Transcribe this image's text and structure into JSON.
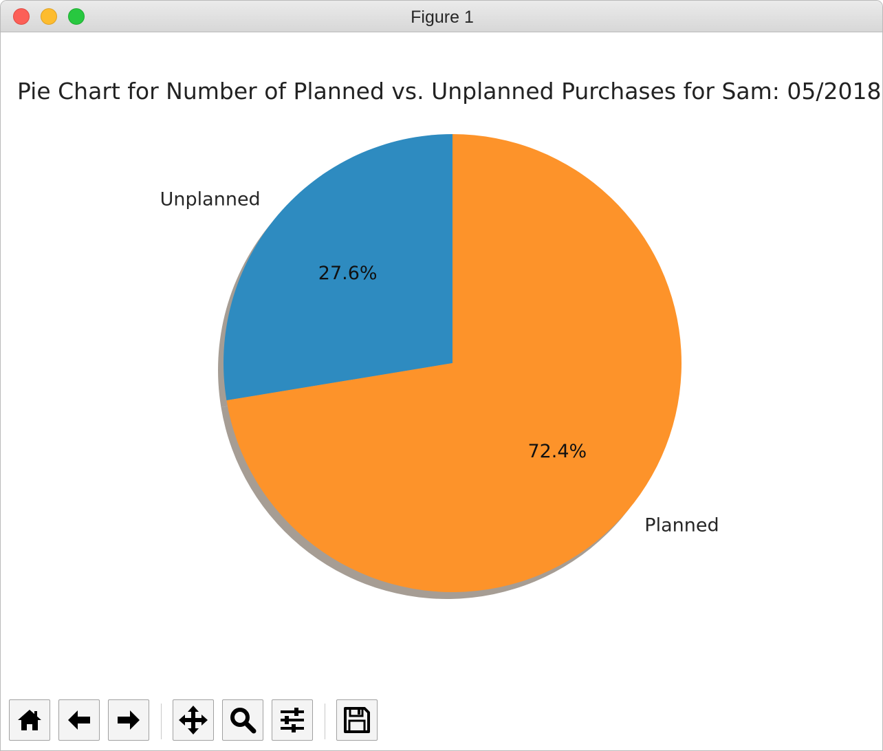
{
  "window": {
    "title": "Figure 1"
  },
  "chart_data": {
    "type": "pie",
    "title": "Pie Chart for Number of Planned vs. Unplanned Purchases for Sam: 05/2018",
    "slices": [
      {
        "label": "Unplanned",
        "percent": 27.6,
        "pct_label": "27.6%",
        "color": "#2e8bc0"
      },
      {
        "label": "Planned",
        "percent": 72.4,
        "pct_label": "72.4%",
        "color": "#fd932a"
      }
    ],
    "start_angle_deg": 90,
    "direction": "counterclockwise",
    "shadow": true,
    "shadow_color": "#a69d94",
    "legend": false
  },
  "toolbar": {
    "buttons": [
      {
        "name": "home",
        "icon": "home-icon"
      },
      {
        "name": "back",
        "icon": "arrow-left-icon"
      },
      {
        "name": "forward",
        "icon": "arrow-right-icon"
      },
      {
        "name": "pan",
        "icon": "move-icon"
      },
      {
        "name": "zoom",
        "icon": "magnifier-icon"
      },
      {
        "name": "configure",
        "icon": "sliders-icon"
      },
      {
        "name": "save",
        "icon": "floppy-disk-icon"
      }
    ]
  }
}
